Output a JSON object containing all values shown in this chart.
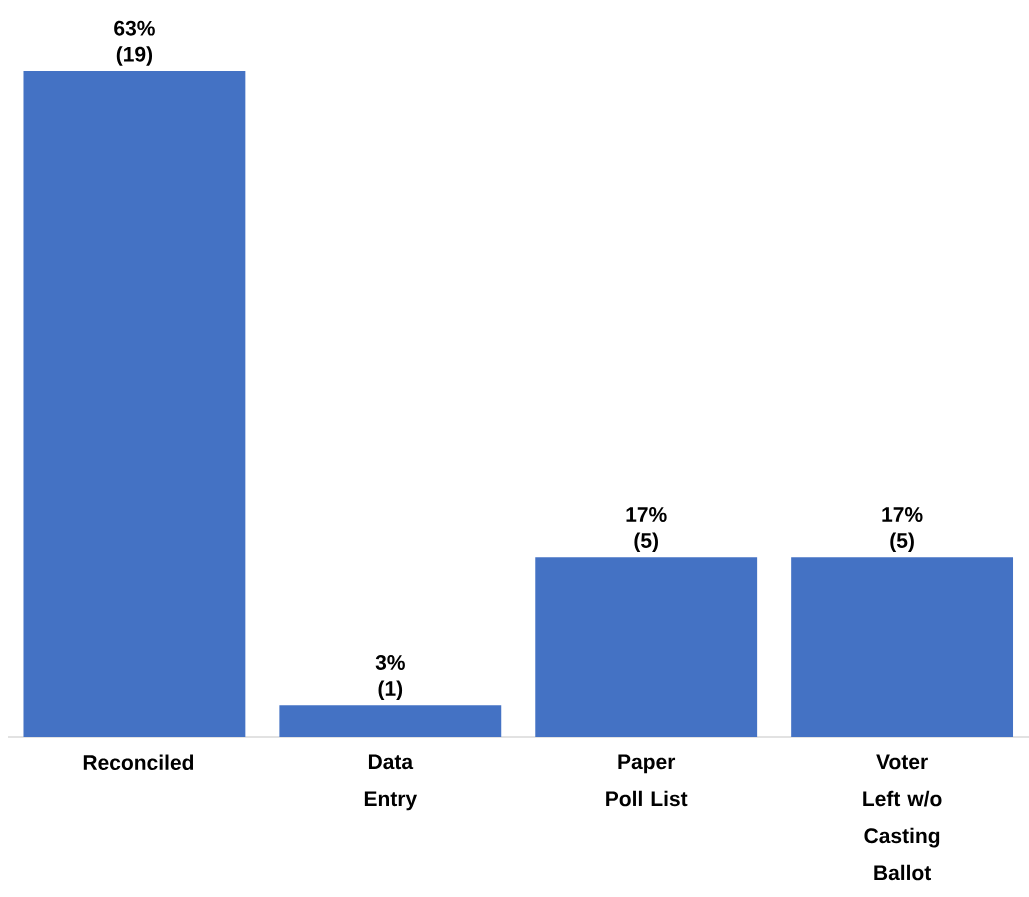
{
  "chart_data": {
    "type": "bar",
    "categories": [
      "Reconciled",
      "Data Entry",
      "Paper Poll List",
      "Voter Left w/o Casting Ballot"
    ],
    "values": [
      63,
      3,
      17,
      17
    ],
    "value_labels": [
      "63% (19)",
      "3% (1)",
      "17% (5)",
      "17% (5)"
    ],
    "color": "#4472c4"
  }
}
